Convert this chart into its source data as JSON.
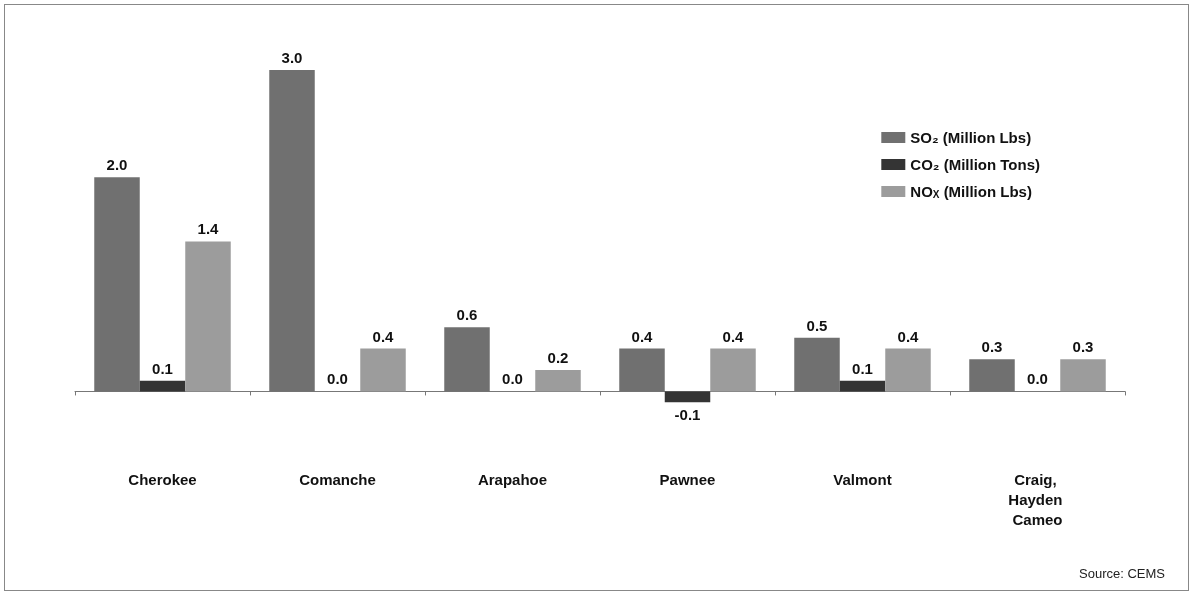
{
  "chart_data": {
    "type": "bar",
    "categories": [
      "Cherokee",
      "Comanche",
      "Arapahoe",
      "Pawnee",
      "Valmont",
      "Craig, Hayden Cameo"
    ],
    "series": [
      {
        "name": "SO₂ (Million Lbs)",
        "color": "#707070",
        "values": [
          2,
          3,
          0.6,
          0.4,
          0.5,
          0.3
        ],
        "value_labels": [
          "2.0",
          "3.0",
          "0.6",
          "0.4",
          "0.5",
          "0.3"
        ]
      },
      {
        "name": "CO₂ (Million Tons)",
        "color": "#343434",
        "values": [
          0.1,
          0,
          0,
          -0.1,
          0.1,
          0
        ],
        "value_labels": [
          "0.1",
          "0.0",
          "0.0",
          "-0.1",
          "0.1",
          "0.0"
        ]
      },
      {
        "name": "NO$_{X}$ (Million Lbs)",
        "color": "#9c9c9c",
        "values": [
          1.4,
          0.4,
          0.2,
          0.4,
          0.4,
          0.3
        ],
        "value_labels": [
          "1.4",
          "0.4",
          "0.2",
          "0.4",
          "0.4",
          "0.3"
        ]
      }
    ],
    "legend": "top right",
    "grid": false,
    "annotations": [
      "Source: CEMS"
    ]
  }
}
